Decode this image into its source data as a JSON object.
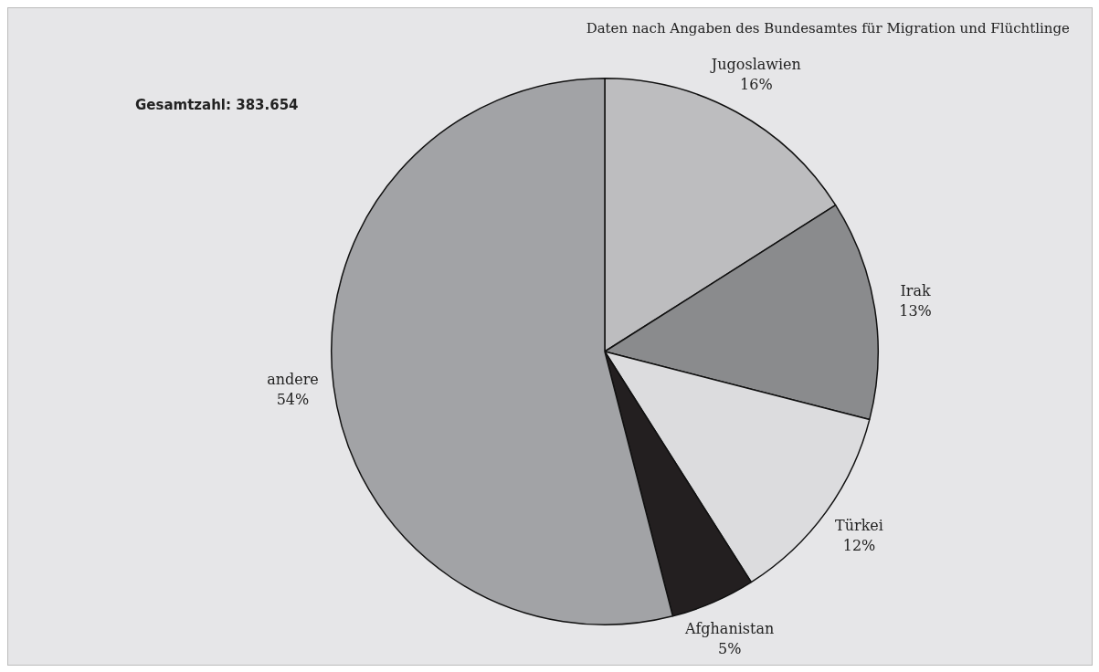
{
  "chart_data": {
    "type": "pie",
    "categories": [
      "Jugoslawien",
      "Irak",
      "Türkei",
      "Afghanistan",
      "andere"
    ],
    "values": [
      16,
      13,
      12,
      5,
      54
    ],
    "value_labels": [
      "16%",
      "13%",
      "12%",
      "5%",
      "54%"
    ],
    "colors": [
      "#bdbdbf",
      "#8a8b8d",
      "#dcdcde",
      "#231f20",
      "#a2a3a6"
    ],
    "legend": false,
    "annotations": [
      "Daten nach Angaben des Bundesamtes für Migration und Flüchtlinge",
      "Gesamtzahl: 383.654"
    ]
  }
}
